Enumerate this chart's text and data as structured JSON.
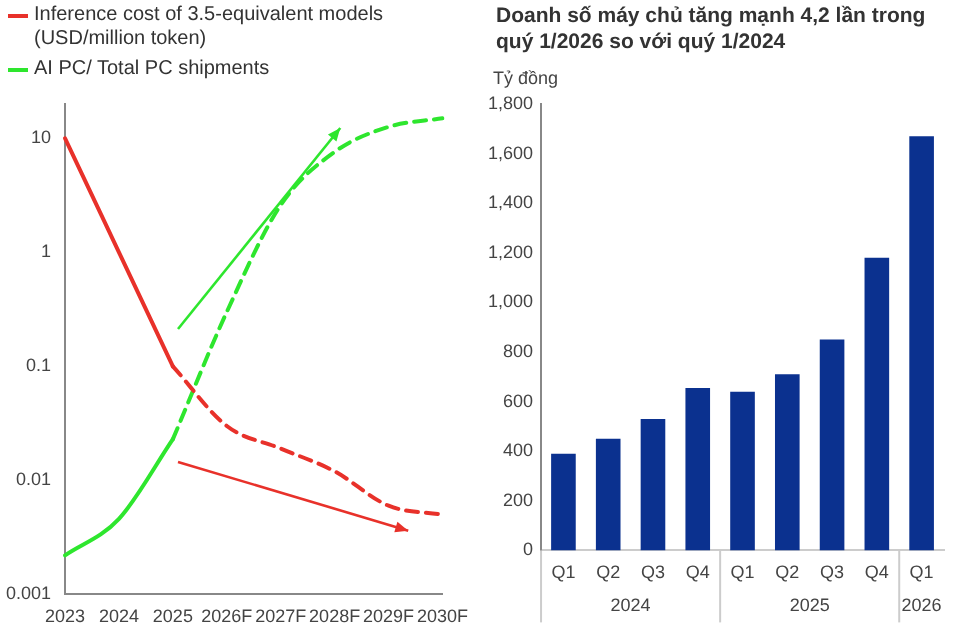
{
  "chart_data": [
    {
      "type": "line",
      "categories": [
        "2023",
        "2024",
        "2025",
        "2026F",
        "2027F",
        "2028F",
        "2029F",
        "2030F"
      ],
      "log": "y",
      "ylim": [
        0.001,
        20
      ],
      "yticks": [
        0.001,
        0.01,
        0.1,
        1,
        10
      ],
      "grid": false,
      "legend": "top left",
      "marker": "none",
      "series": [
        {
          "name": "Inference cost of 3.5-equivalent models (USD/million token)",
          "color": "#e8312a",
          "line_style": "solid",
          "values": [
            10,
            1,
            0.1,
            null,
            null,
            null,
            null,
            null
          ]
        },
        {
          "color": "#e8312a",
          "line_style": "dashed",
          "values": [
            null,
            null,
            0.1,
            0.03,
            0.019,
            0.012,
            0.006,
            0.005
          ]
        },
        {
          "name": "AI PC/ Total PC shipments",
          "color": "#2ee62e",
          "line_style": "solid",
          "values": [
            0.0022,
            0.0046,
            0.023,
            null,
            null,
            null,
            null,
            null
          ]
        },
        {
          "color": "#2ee62e",
          "line_style": "dashed",
          "values": [
            null,
            null,
            0.023,
            0.3,
            2.6,
            7.6,
            12.6,
            15
          ]
        }
      ]
    },
    {
      "type": "bar",
      "title": "Doanh số máy chủ tăng mạnh 4,2 lần trong quý 1/2026 so với quý 1/2024",
      "ylabel": "Tỷ đồng",
      "categories": [
        "Q1",
        "Q2",
        "Q3",
        "Q4",
        "Q1",
        "Q2",
        "Q3",
        "Q4",
        "Q1"
      ],
      "values": [
        390,
        450,
        530,
        655,
        640,
        710,
        850,
        1180,
        1670
      ],
      "color": "#0b318f",
      "ylim": [
        0,
        1800
      ],
      "yticks": [
        0,
        200,
        400,
        600,
        800,
        {
          "value": 1000,
          "label": "1,000"
        },
        {
          "value": 1200,
          "label": "1,200"
        },
        {
          "value": 1400,
          "label": "1,400"
        },
        {
          "value": 1600,
          "label": "1,600"
        },
        {
          "value": 1800,
          "label": "1,800"
        }
      ],
      "grid": false,
      "annotations": [
        "2024",
        "2025",
        "2026"
      ]
    }
  ]
}
